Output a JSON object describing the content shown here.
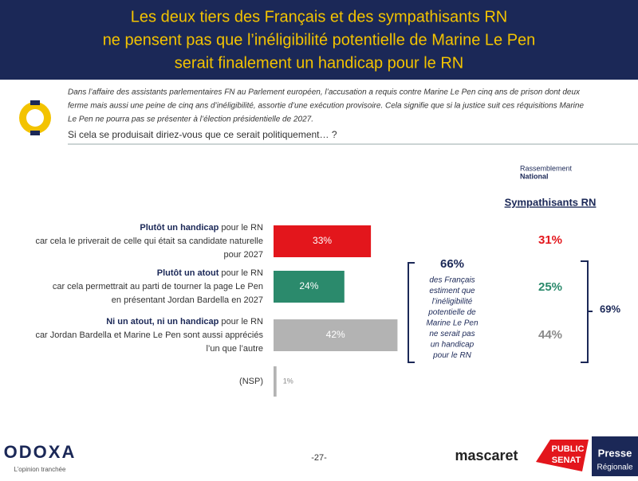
{
  "header": {
    "title_lines": [
      "Les deux tiers des Français et des sympathisants RN",
      "ne pensent pas que l’inéligibilité potentielle de Marine Le Pen",
      "serait finalement un handicap pour le RN"
    ]
  },
  "context_lines": [
    "Dans l’affaire des assistants parlementaires FN au Parlement européen, l’accusation a requis contre Marine Le Pen cinq ans de prison dont deux",
    "ferme mais aussi une peine de cinq ans d’inéligibilité, assortie d’une exécution provisoire. Cela signifie que si la justice suit ces réquisitions Marine",
    "Le Pen ne pourra pas se présenter à l’élection présidentielle de 2027."
  ],
  "question": "Si cela se produisait diriez-vous que ce serait politiquement… ?",
  "chart_data": {
    "type": "bar",
    "orientation": "horizontal",
    "categories": [
      "Plutôt un handicap",
      "Plutôt un atout",
      "Ni un atout, ni un handicap",
      "(NSP)"
    ],
    "category_details": [
      [
        " pour le RN",
        "car cela le priverait de celle qui était sa candidate naturelle",
        "pour 2027"
      ],
      [
        " pour le RN",
        "car cela permettrait au parti de tourner la page Le Pen",
        "en présentant Jordan Bardella en 2027"
      ],
      [
        " pour le RN",
        "car Jordan Bardella et Marine Le Pen sont aussi appréciés",
        "l’un que l’autre"
      ],
      []
    ],
    "values": [
      33,
      24,
      42,
      1
    ],
    "value_labels": [
      "33%",
      "24%",
      "42%",
      "1%"
    ],
    "colors": [
      "#e3161c",
      "#2b8a6c",
      "#b3b3b3",
      "#b3b3b3"
    ],
    "summary": {
      "value": 66,
      "label": "66%",
      "lines": [
        "des Français",
        "estiment que",
        "l’inéligibilité",
        "potentielle de",
        "Marine Le Pen",
        "ne serait pas",
        "un handicap",
        "pour le RN"
      ]
    },
    "rn": {
      "logo_lines": [
        "Rassemblement",
        "National"
      ],
      "title": "Sympathisants RN",
      "values": [
        31,
        25,
        44
      ],
      "value_labels": [
        "31%",
        "25%",
        "44%"
      ],
      "colors": [
        "#e3161c",
        "#2b8a6c",
        "#8a8a8a"
      ],
      "total": {
        "value": 69,
        "label": "69%"
      }
    }
  },
  "footer": {
    "brand": "ODOXA",
    "tagline": "L’opinion tranchée",
    "page": "-27-",
    "partners": [
      "mascaret",
      "PUBLIC",
      "SENAT",
      "Presse",
      "Régionale"
    ]
  }
}
